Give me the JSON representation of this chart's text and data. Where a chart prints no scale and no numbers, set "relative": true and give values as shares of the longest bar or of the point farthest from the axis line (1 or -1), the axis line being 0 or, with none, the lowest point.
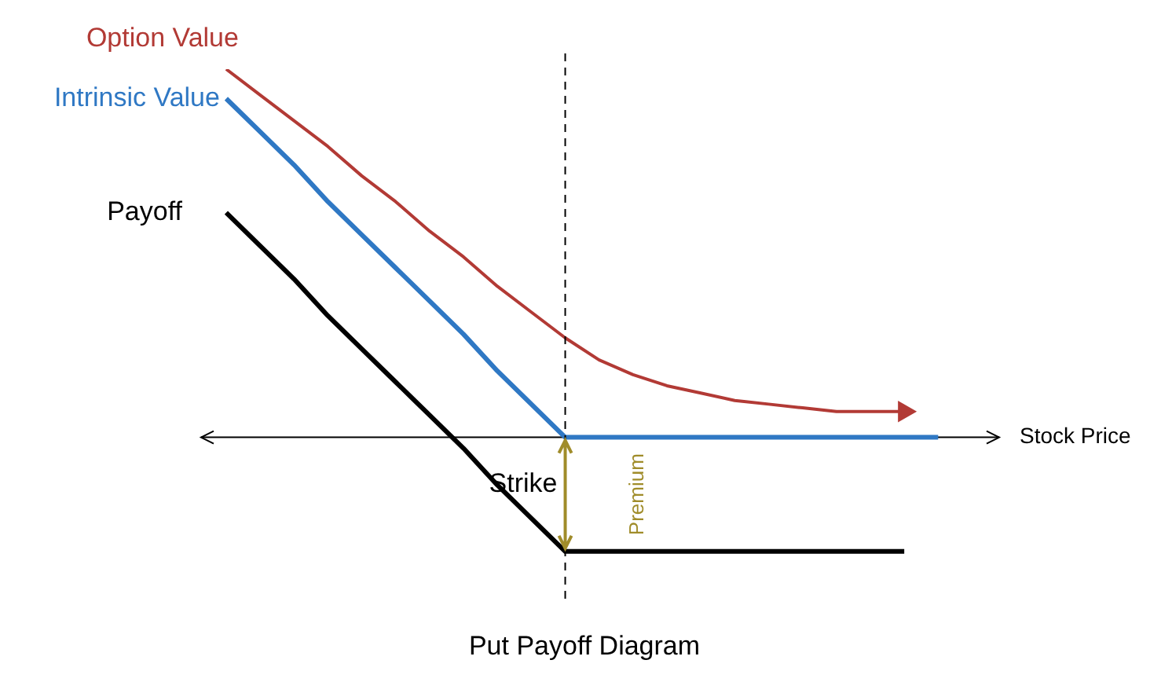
{
  "chart_data": {
    "type": "line",
    "title": "Put Payoff Diagram",
    "xlabel": "Stock Price",
    "relative": true,
    "legend": false,
    "marker": "none",
    "line_style": "solid",
    "categories": [
      null,
      null,
      null,
      null,
      null,
      null,
      null,
      null,
      null,
      null,
      null,
      null,
      null,
      null,
      null,
      null,
      null,
      null,
      null,
      null,
      null,
      null,
      null
    ],
    "series": [
      {
        "name": "Option Value",
        "color": "#b23a35",
        "values": [
          1,
          0.93,
          0.86,
          0.79,
          0.71,
          0.64,
          0.56,
          0.49,
          0.41,
          0.34,
          0.27,
          0.21,
          0.17,
          0.14,
          0.12,
          0.1,
          0.09,
          0.08,
          0.07,
          0.07,
          0.07,
          null,
          null
        ]
      },
      {
        "name": "Intrinsic Value",
        "color": "#2f78c4",
        "values": [
          0.92,
          0.83,
          0.74,
          0.64,
          0.55,
          0.46,
          0.37,
          0.28,
          0.18,
          0.09,
          0,
          0,
          0,
          0,
          0,
          0,
          0,
          0,
          0,
          0,
          0,
          0,
          null
        ]
      },
      {
        "name": "Payoff",
        "color": "#000000",
        "values": [
          0.61,
          0.52,
          0.43,
          0.33,
          0.24,
          0.15,
          0.06,
          -0.03,
          -0.13,
          -0.22,
          -0.31,
          -0.31,
          -0.31,
          -0.31,
          -0.31,
          -0.31,
          -0.31,
          -0.31,
          -0.31,
          -0.31,
          -0.31,
          null,
          null
        ]
      }
    ],
    "annotations": [
      "Strike",
      "Premium"
    ]
  }
}
